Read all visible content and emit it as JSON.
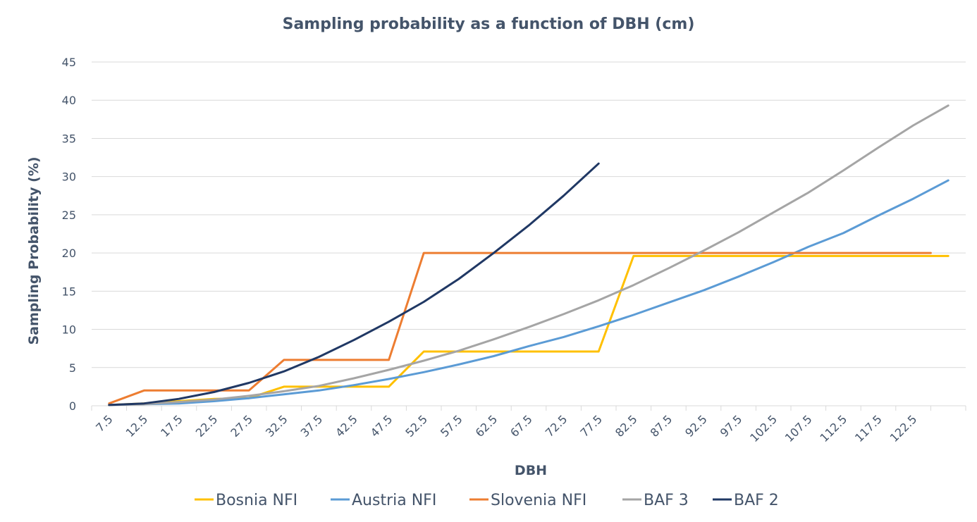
{
  "chart_data": {
    "type": "line",
    "title": "Sampling probability as a function of DBH (cm)",
    "xlabel": "DBH",
    "ylabel": "Sampling Probability (%)",
    "ylim": [
      0,
      45
    ],
    "yticks": [
      0,
      5,
      10,
      15,
      20,
      25,
      30,
      35,
      40,
      45
    ],
    "categories": [
      7.5,
      12.5,
      17.5,
      22.5,
      27.5,
      32.5,
      37.5,
      42.5,
      47.5,
      52.5,
      57.5,
      62.5,
      67.5,
      72.5,
      77.5,
      82.5,
      87.5,
      92.5,
      97.5,
      102.5,
      107.5,
      112.5,
      117.5,
      122.5
    ],
    "category_labels": [
      "7.5",
      "12.5",
      "17.5",
      "22.5",
      "27.5",
      "32.5",
      "37.5",
      "42.5",
      "47.5",
      "52.5",
      "57.5",
      "62.5",
      "67.5",
      "72.5",
      "77.5",
      "82.5",
      "87.5",
      "92.5",
      "97.5",
      "102.5",
      "107.5",
      "112.5",
      "117.5",
      "122.5"
    ],
    "legend_position": "bottom",
    "grid": true,
    "series": [
      {
        "name": "Bosnia NFI",
        "color": "#FFC000",
        "x": [
          7.5,
          12.5,
          17.5,
          22.5,
          27.5,
          32.5,
          37.5,
          42.5,
          47.5,
          52.5,
          57.5,
          62.5,
          67.5,
          72.5,
          77.5,
          82.5,
          87.5,
          92.5,
          97.5,
          102.5,
          107.5,
          112.5,
          117.5,
          122.5,
          127.5
        ],
        "values": [
          0.1,
          0.3,
          0.6,
          0.9,
          1.0,
          2.5,
          2.5,
          2.5,
          2.5,
          7.1,
          7.1,
          7.1,
          7.1,
          7.1,
          7.1,
          19.6,
          19.6,
          19.6,
          19.6,
          19.6,
          19.6,
          19.6,
          19.6,
          19.6,
          19.6
        ]
      },
      {
        "name": "Austria NFI",
        "color": "#5B9BD5",
        "x": [
          7.5,
          12.5,
          17.5,
          22.5,
          27.5,
          32.5,
          37.5,
          42.5,
          47.5,
          52.5,
          57.5,
          62.5,
          67.5,
          72.5,
          77.5,
          82.5,
          87.5,
          92.5,
          97.5,
          102.5,
          107.5,
          112.5,
          117.5,
          122.5,
          127.5
        ],
        "values": [
          0.1,
          0.2,
          0.3,
          0.6,
          1.0,
          1.5,
          2.0,
          2.7,
          3.5,
          4.4,
          5.4,
          6.5,
          7.8,
          9.0,
          10.4,
          11.9,
          13.5,
          15.1,
          16.9,
          18.8,
          20.8,
          22.6,
          24.9,
          27.1,
          29.5
        ]
      },
      {
        "name": "Slovenia NFI",
        "color": "#ED7D31",
        "x": [
          7.5,
          12.5,
          17.5,
          22.5,
          27.5,
          32.5,
          37.5,
          42.5,
          47.5,
          52.5,
          57.5,
          62.5,
          67.5,
          72.5,
          77.5,
          82.5,
          87.5,
          92.5,
          97.5,
          102.5,
          107.5,
          112.5,
          117.5,
          122.5,
          125.0
        ],
        "values": [
          0.3,
          2.0,
          2.0,
          2.0,
          2.0,
          6.0,
          6.0,
          6.0,
          6.0,
          20.0,
          20.0,
          20.0,
          20.0,
          20.0,
          20.0,
          20.0,
          20.0,
          20.0,
          20.0,
          20.0,
          20.0,
          20.0,
          20.0,
          20.0,
          20.0
        ]
      },
      {
        "name": "BAF 3",
        "color": "#A5A5A5",
        "x": [
          7.5,
          12.5,
          17.5,
          22.5,
          27.5,
          32.5,
          37.5,
          42.5,
          47.5,
          52.5,
          57.5,
          62.5,
          67.5,
          72.5,
          77.5,
          82.5,
          87.5,
          92.5,
          97.5,
          102.5,
          107.5,
          112.5,
          117.5,
          122.5,
          127.5
        ],
        "values": [
          0.1,
          0.2,
          0.5,
          0.8,
          1.3,
          1.9,
          2.6,
          3.6,
          4.7,
          5.9,
          7.2,
          8.7,
          10.3,
          12.0,
          13.8,
          15.8,
          18.0,
          20.3,
          22.7,
          25.3,
          27.9,
          30.8,
          33.8,
          36.7,
          39.3
        ]
      },
      {
        "name": "BAF 2",
        "color": "#203864",
        "x": [
          7.5,
          12.5,
          17.5,
          22.5,
          27.5,
          32.5,
          37.5,
          42.5,
          47.5,
          52.5,
          57.5,
          62.5,
          67.5,
          72.5,
          77.5
        ],
        "values": [
          0.1,
          0.3,
          0.9,
          1.8,
          3.0,
          4.5,
          6.4,
          8.6,
          11.0,
          13.6,
          16.6,
          20.0,
          23.6,
          27.5,
          31.7
        ]
      }
    ]
  }
}
